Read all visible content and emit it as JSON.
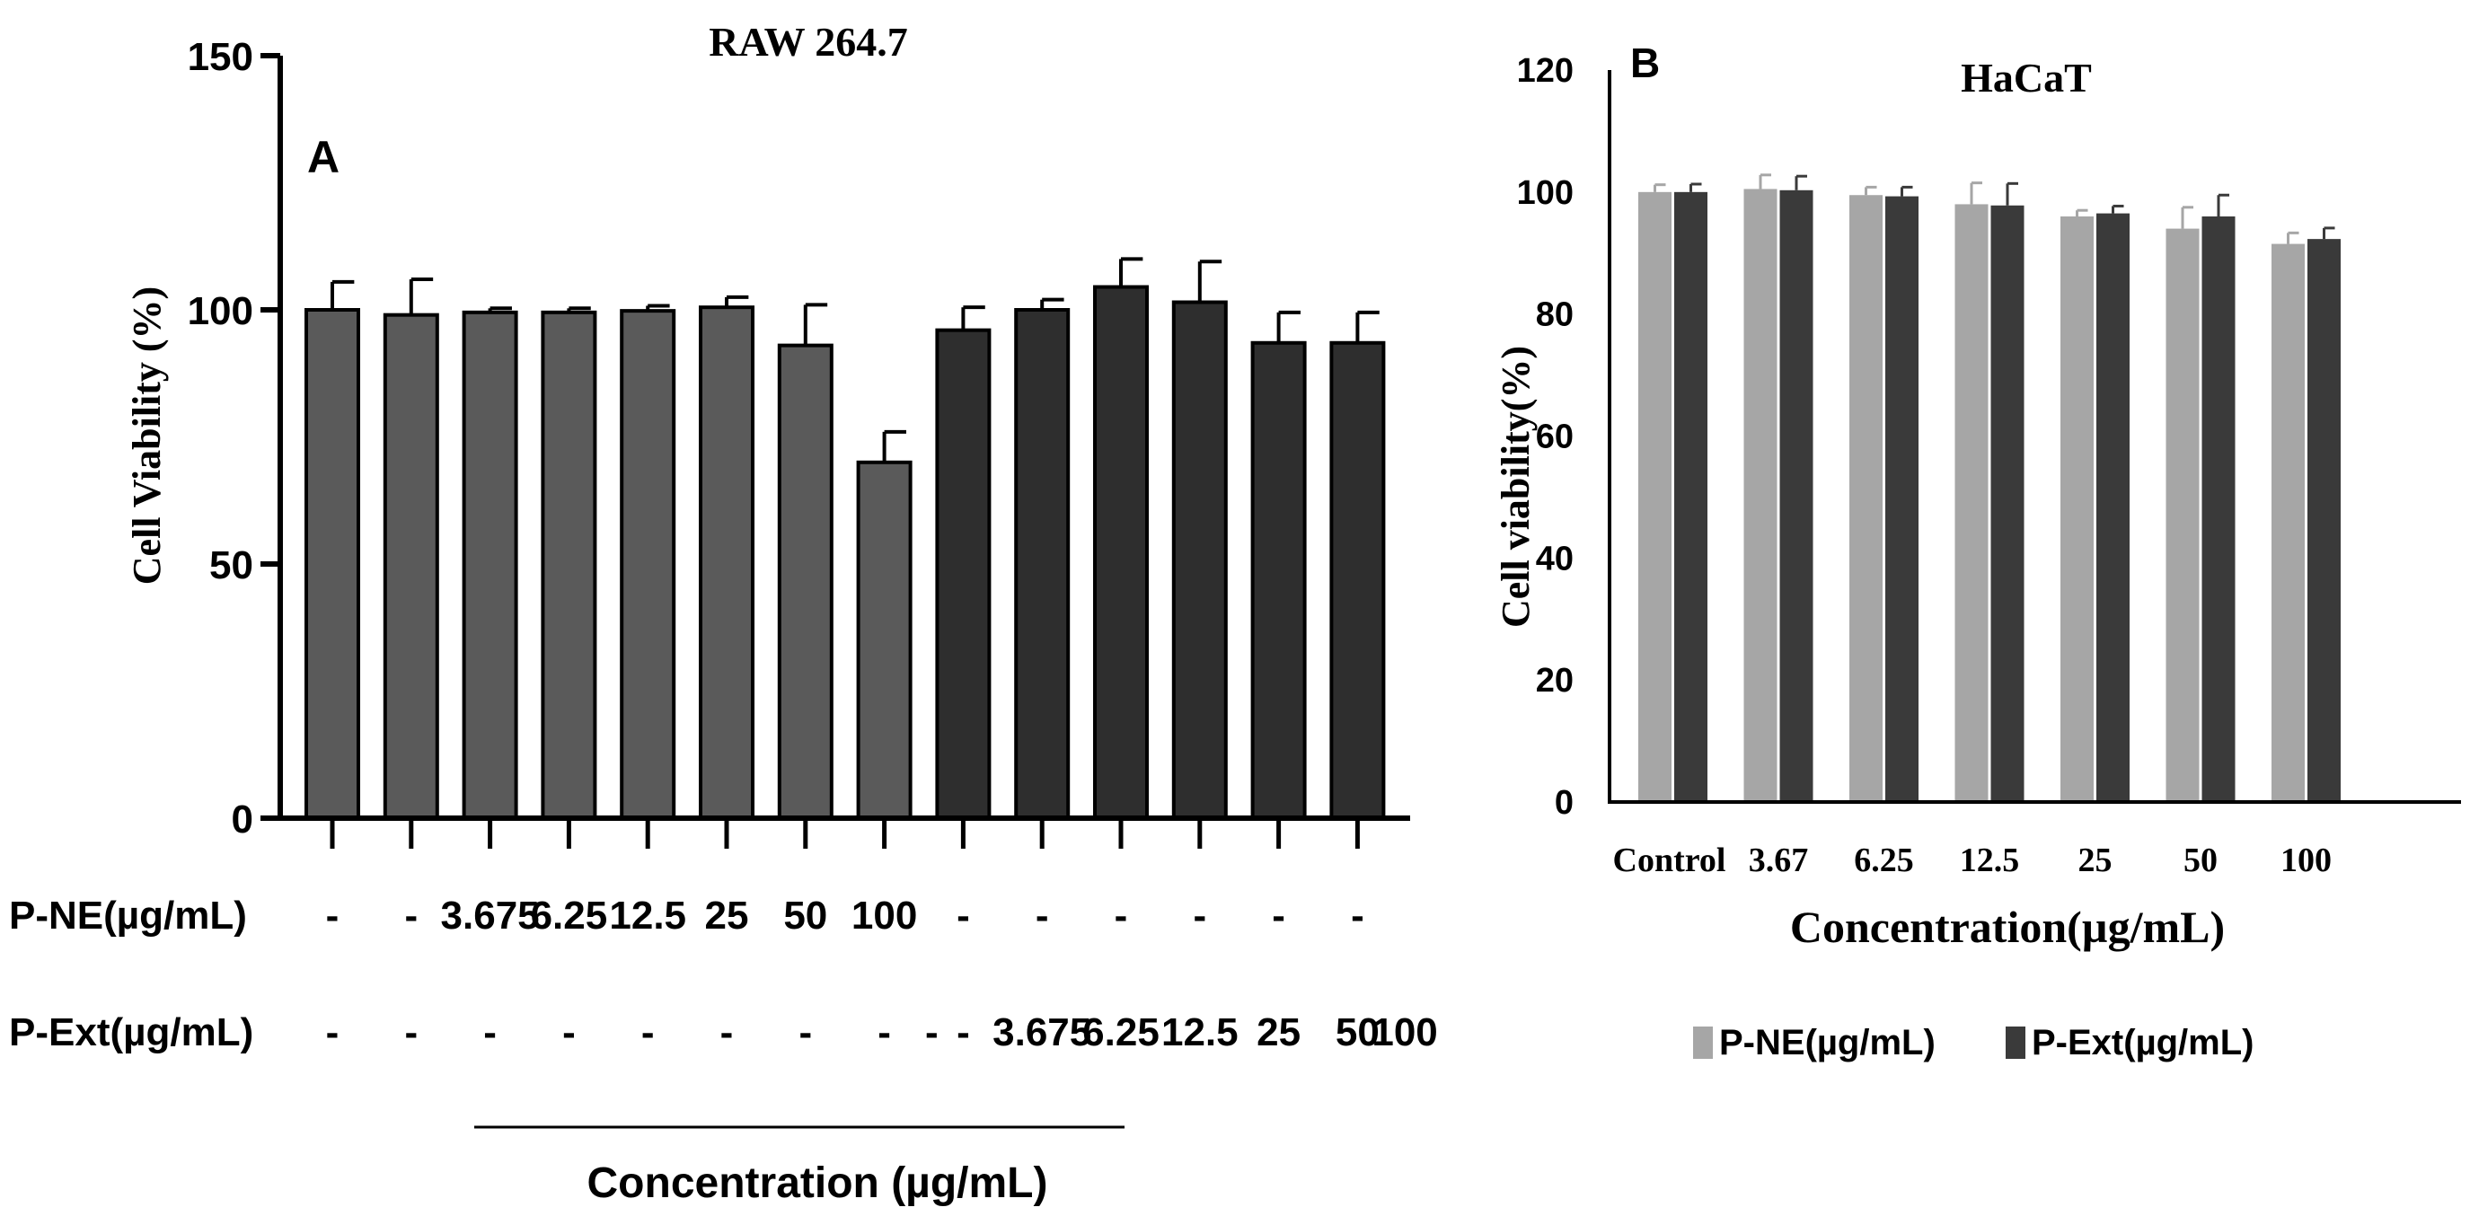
{
  "colors": {
    "raw_pne": "#5a5a5a",
    "raw_pext": "#2e2e2e",
    "hacat_pne": "#a6a6a6",
    "hacat_pext": "#3a3a3a",
    "axis": "#000000"
  },
  "chart_data": [
    {
      "type": "bar",
      "panel_label": "A",
      "title": "RAW 264.7",
      "ylabel": "Cell Viability (%)",
      "xlabel": "Concentration (µg/mL)",
      "ylim": [
        0,
        150
      ],
      "yticks": [
        "0",
        "50",
        "100",
        "150"
      ],
      "grid": false,
      "row_labels": [
        "P-NE(µg/mL)",
        "P-Ext(µg/mL)"
      ],
      "series": [
        {
          "name": "P-NE",
          "color_key": "raw_pne",
          "bars": [
            {
              "value": 100,
              "error": 5.5,
              "pne": "-",
              "pext": "-"
            },
            {
              "value": 99,
              "error": 7,
              "pne": "-",
              "pext": "-"
            },
            {
              "value": 99.5,
              "error": 0.8,
              "pne": "3.675",
              "pext": "-"
            },
            {
              "value": 99.5,
              "error": 0.8,
              "pne": "6.25",
              "pext": "-"
            },
            {
              "value": 99.8,
              "error": 1,
              "pne": "12.5",
              "pext": "-"
            },
            {
              "value": 100.5,
              "error": 2,
              "pne": "25",
              "pext": "-"
            },
            {
              "value": 93,
              "error": 8,
              "pne": "50",
              "pext": "-"
            },
            {
              "value": 70,
              "error": 6,
              "pne": "100",
              "pext": "-"
            }
          ]
        },
        {
          "name": "P-Ext",
          "color_key": "raw_pext",
          "bars": [
            {
              "value": 96,
              "error": 4.5,
              "pne": "-",
              "pext": "-"
            },
            {
              "value": 100,
              "error": 2,
              "pne": "-",
              "pext": "3.675"
            },
            {
              "value": 104.5,
              "error": 5.5,
              "pne": "-",
              "pext": "6.25"
            },
            {
              "value": 101.5,
              "error": 8,
              "pne": "-",
              "pext": "12.5"
            },
            {
              "value": 93.5,
              "error": 6,
              "pne": "-",
              "pext": "25"
            },
            {
              "value": 93.5,
              "error": 6,
              "pne": "-",
              "pext": "50"
            }
          ]
        }
      ],
      "pext_trailing_label": "100",
      "pext_extra_dash": "-"
    },
    {
      "type": "bar",
      "panel_label": "B",
      "title": "HaCaT",
      "ylabel": "Cell viability(%)",
      "xlabel": "Concentration(µg/mL)",
      "ylim": [
        0,
        120
      ],
      "yticks": [
        "0",
        "20",
        "40",
        "60",
        "80",
        "100",
        "120"
      ],
      "grid": false,
      "legend_position": "bottom",
      "categories": [
        "Control",
        "3.67",
        "6.25",
        "12.5",
        "25",
        "50",
        "100"
      ],
      "series": [
        {
          "name": "P-NE(µg/mL)",
          "color_key": "hacat_pne",
          "values": [
            100,
            100.5,
            99.5,
            98,
            96,
            94,
            91.5
          ],
          "errors": [
            1.2,
            2.3,
            1.3,
            3.5,
            1,
            3.5,
            1.8
          ]
        },
        {
          "name": "P-Ext(µg/mL)",
          "color_key": "hacat_pext",
          "values": [
            100,
            100.3,
            99.3,
            97.8,
            96.5,
            96,
            92.3
          ],
          "errors": [
            1.3,
            2.3,
            1.5,
            3.6,
            1.2,
            3.5,
            1.8
          ]
        }
      ]
    }
  ]
}
